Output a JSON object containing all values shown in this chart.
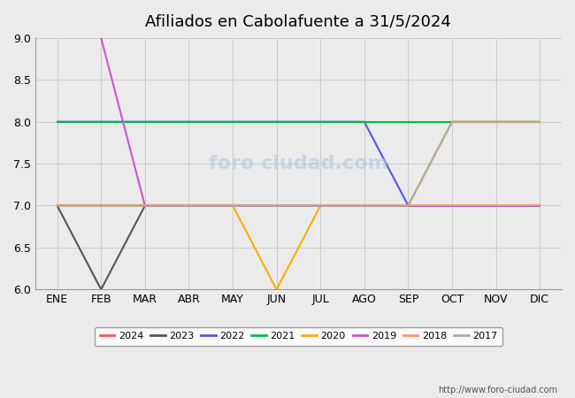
{
  "title": "Afiliados en Cabolafuente a 31/5/2024",
  "months": [
    "ENE",
    "FEB",
    "MAR",
    "ABR",
    "MAY",
    "JUN",
    "JUL",
    "AGO",
    "SEP",
    "OCT",
    "NOV",
    "DIC"
  ],
  "ylim": [
    6.0,
    9.0
  ],
  "yticks": [
    6.0,
    6.5,
    7.0,
    7.5,
    8.0,
    8.5,
    9.0
  ],
  "grid_color": "#cccccc",
  "plot_bg": "#ebebeb",
  "url": "http://www.foro-ciudad.com",
  "series": {
    "2024": {
      "color": "#ff5555",
      "data": {
        "1": 7,
        "2": 7,
        "3": 7,
        "4": 7,
        "5": 7
      }
    },
    "2023": {
      "color": "#555555",
      "data": {
        "1": 7,
        "2": 6,
        "3": 7,
        "4": 7,
        "5": 7,
        "6": 7,
        "7": 7,
        "8": 7,
        "9": 7,
        "10": 7,
        "11": 7,
        "12": 7
      }
    },
    "2022": {
      "color": "#5555dd",
      "data": {
        "1": 8,
        "2": 8,
        "3": 8,
        "4": 8,
        "5": 8,
        "6": 8,
        "7": 8,
        "8": 8,
        "9": 7,
        "10": 7,
        "11": 7,
        "12": 7
      }
    },
    "2021": {
      "color": "#00bb44",
      "data": {
        "1": 8,
        "2": 8,
        "3": 8,
        "4": 8,
        "5": 8,
        "6": 8,
        "7": 8,
        "8": 8,
        "9": 8,
        "10": 8,
        "11": 8,
        "12": 8
      }
    },
    "2020": {
      "color": "#ffaa00",
      "data": {
        "1": 7,
        "2": 7,
        "3": 7,
        "4": 7,
        "5": 7,
        "6": 6,
        "7": 7,
        "8": 7,
        "9": 7,
        "10": 8,
        "11": 8,
        "12": 8
      }
    },
    "2019": {
      "color": "#cc55cc",
      "data": {
        "2": 9,
        "3": 7,
        "4": 7,
        "5": 7,
        "6": 7,
        "7": 7,
        "8": 7,
        "9": 7,
        "10": 7,
        "11": 7,
        "12": 7
      }
    },
    "2018": {
      "color": "#ff9966",
      "data": {
        "1": 7,
        "2": 7,
        "3": 7,
        "4": 7,
        "5": 7,
        "6": 7,
        "7": 7,
        "8": 7,
        "9": 7,
        "10": 7,
        "11": 7,
        "12": 7
      }
    },
    "2017": {
      "color": "#aaaaaa",
      "data": {
        "1": 7,
        "2": 7,
        "3": 7,
        "4": 7,
        "5": 7,
        "6": 7,
        "7": 7,
        "8": 7,
        "9": 7,
        "10": 8,
        "11": 8,
        "12": 8
      }
    }
  },
  "legend_order": [
    "2024",
    "2023",
    "2022",
    "2021",
    "2020",
    "2019",
    "2018",
    "2017"
  ]
}
